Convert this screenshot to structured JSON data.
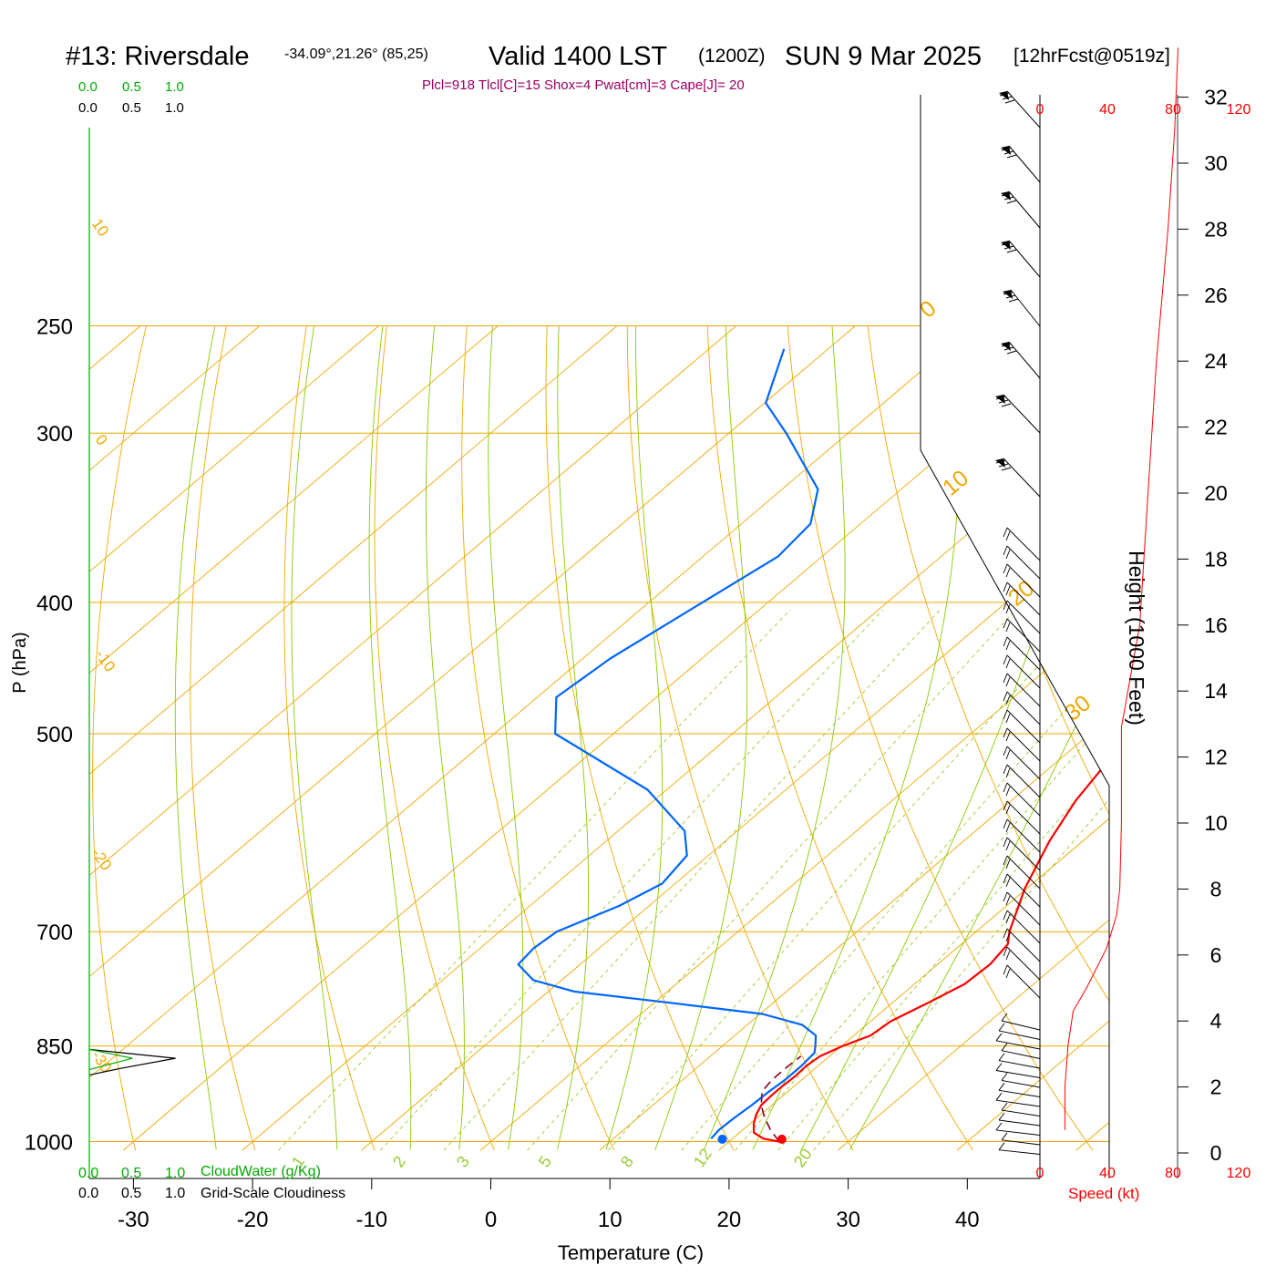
{
  "header": {
    "station": "#13: Riversdale",
    "coords": "-34.09°,21.26° (85,25)",
    "valid": "Valid 1400 LST",
    "utc": "(1200Z)",
    "date": "SUN 9 Mar 2025",
    "forecast": "[12hrFcst@0519z]"
  },
  "params_line": "Plcl=918 Tlcl[C]=15 Shox=4 Pwat[cm]=3 Cape[J]= 20",
  "colors": {
    "temperature": "#ff0000",
    "dewpoint": "#0066ff",
    "isotherm": "#f0a800",
    "moist_adiabat": "#88cc00",
    "mixing_ratio": "#99cc33",
    "cloudwater": "#00aa00",
    "params": "#990066",
    "speed": "#ff0000"
  },
  "cloud_scale": {
    "green_ticks": [
      "0.0",
      "0.5",
      "1.0"
    ],
    "black_ticks": [
      "0.0",
      "0.5",
      "1.0"
    ],
    "cloudwater_label": "CloudWater (g/Kg)",
    "cloudiness_label": "Grid-Scale Cloudiness"
  },
  "speed_scale": {
    "ticks": [
      "0",
      "40",
      "80",
      "120"
    ],
    "label": "Speed (kt)"
  },
  "chart_data": {
    "type": "line",
    "title": "#13: Riversdale",
    "xlabel": "Temperature (C)",
    "ylabel": "P (hPa)",
    "y2label": "Height (1000 Feet)",
    "x_ticks": [
      "-30",
      "-20",
      "-10",
      "0",
      "10",
      "20",
      "30",
      "40"
    ],
    "pressure_ticks": [
      "250",
      "300",
      "400",
      "500",
      "700",
      "850",
      "1000"
    ],
    "height_ticks": [
      "0",
      "2",
      "4",
      "6",
      "8",
      "10",
      "12",
      "14",
      "16",
      "18",
      "20",
      "22",
      "24",
      "26",
      "28",
      "30",
      "32"
    ],
    "xlim": [
      -33.6,
      36.2
    ],
    "plim": [
      1015,
      250
    ],
    "temperature_profile": [
      {
        "p": 1000,
        "t": 24.2
      },
      {
        "p": 995,
        "t": 22.6
      },
      {
        "p": 985,
        "t": 21.2
      },
      {
        "p": 970,
        "t": 20.3
      },
      {
        "p": 955,
        "t": 19.6
      },
      {
        "p": 940,
        "t": 19.1
      },
      {
        "p": 925,
        "t": 19.0
      },
      {
        "p": 910,
        "t": 19.0
      },
      {
        "p": 895,
        "t": 19.1
      },
      {
        "p": 880,
        "t": 19.0
      },
      {
        "p": 865,
        "t": 19.2
      },
      {
        "p": 850,
        "t": 20.1
      },
      {
        "p": 835,
        "t": 21.4
      },
      {
        "p": 815,
        "t": 21.7
      },
      {
        "p": 790,
        "t": 23.0
      },
      {
        "p": 765,
        "t": 24.2
      },
      {
        "p": 740,
        "t": 24.4
      },
      {
        "p": 715,
        "t": 23.9
      },
      {
        "p": 700,
        "t": 22.8
      },
      {
        "p": 650,
        "t": 19.8
      },
      {
        "p": 600,
        "t": 17.2
      },
      {
        "p": 560,
        "t": 15.4
      },
      {
        "p": 500,
        "t": 13.4
      },
      {
        "p": 470,
        "t": 12.4
      },
      {
        "p": 450,
        "t": 10.9
      },
      {
        "p": 400,
        "t": 6.7
      },
      {
        "p": 350,
        "t": 2.5
      },
      {
        "p": 320,
        "t": -1.3
      },
      {
        "p": 300,
        "t": -4.6
      },
      {
        "p": 275,
        "t": -8.2
      },
      {
        "p": 260,
        "t": -10.6
      }
    ],
    "dewpoint_profile": [
      {
        "p": 995,
        "t": 18.2
      },
      {
        "p": 980,
        "t": 18.0
      },
      {
        "p": 960,
        "t": 18.1
      },
      {
        "p": 940,
        "t": 18.3
      },
      {
        "p": 920,
        "t": 18.4
      },
      {
        "p": 900,
        "t": 18.6
      },
      {
        "p": 880,
        "t": 18.6
      },
      {
        "p": 860,
        "t": 18.4
      },
      {
        "p": 850,
        "t": 17.8
      },
      {
        "p": 835,
        "t": 16.8
      },
      {
        "p": 820,
        "t": 14.6
      },
      {
        "p": 805,
        "t": 10.2
      },
      {
        "p": 790,
        "t": 1.4
      },
      {
        "p": 775,
        "t": -7.8
      },
      {
        "p": 760,
        "t": -12.4
      },
      {
        "p": 740,
        "t": -15.2
      },
      {
        "p": 720,
        "t": -15.5
      },
      {
        "p": 700,
        "t": -15.2
      },
      {
        "p": 670,
        "t": -12.5
      },
      {
        "p": 645,
        "t": -11.1
      },
      {
        "p": 615,
        "t": -11.8
      },
      {
        "p": 590,
        "t": -14.4
      },
      {
        "p": 550,
        "t": -21.6
      },
      {
        "p": 500,
        "t": -34.9
      },
      {
        "p": 470,
        "t": -38.4
      },
      {
        "p": 440,
        "t": -37.7
      },
      {
        "p": 400,
        "t": -35.5
      },
      {
        "p": 370,
        "t": -33.7
      },
      {
        "p": 350,
        "t": -34.2
      },
      {
        "p": 330,
        "t": -37.0
      },
      {
        "p": 300,
        "t": -45.2
      },
      {
        "p": 285,
        "t": -49.9
      },
      {
        "p": 260,
        "t": -53.7
      }
    ],
    "parcel_profile": [
      {
        "p": 1000,
        "t": 24.2
      },
      {
        "p": 980,
        "t": 22.3
      },
      {
        "p": 960,
        "t": 20.6
      },
      {
        "p": 940,
        "t": 19.1
      },
      {
        "p": 918,
        "t": 17.8
      },
      {
        "p": 900,
        "t": 17.5
      },
      {
        "p": 880,
        "t": 17.5
      },
      {
        "p": 865,
        "t": 17.6
      }
    ],
    "surface_temperature": 24.2,
    "surface_dewpoint": 19.2,
    "isotherm_label_values": [
      "10",
      "0",
      "-10",
      "-20",
      "-30",
      "0",
      "10",
      "20",
      "30"
    ],
    "mixing_ratio_labels": [
      "1",
      "2",
      "3",
      "5",
      "8",
      "12",
      "20"
    ],
    "wind_speed_profile": [
      {
        "h": 0.7,
        "s": 15
      },
      {
        "h": 2.0,
        "s": 15
      },
      {
        "h": 3.3,
        "s": 17
      },
      {
        "h": 4.3,
        "s": 20
      },
      {
        "h": 5.0,
        "s": 28
      },
      {
        "h": 6.2,
        "s": 40
      },
      {
        "h": 7.2,
        "s": 46
      },
      {
        "h": 8.0,
        "s": 48
      },
      {
        "h": 10.0,
        "s": 49
      },
      {
        "h": 12.9,
        "s": 49
      },
      {
        "h": 16.0,
        "s": 60
      },
      {
        "h": 20.0,
        "s": 65
      },
      {
        "h": 24.0,
        "s": 70
      },
      {
        "h": 28.0,
        "s": 77
      },
      {
        "h": 31.0,
        "s": 81
      },
      {
        "h": 33.5,
        "s": 83
      }
    ],
    "cloud_water_trace": [
      {
        "p": 855,
        "v": 0.0
      },
      {
        "p": 868,
        "v": 0.55
      },
      {
        "p": 885,
        "v": 0.0
      }
    ],
    "cloudiness_trace": [
      {
        "p": 855,
        "v": 0.0
      },
      {
        "p": 868,
        "v": 1.1
      },
      {
        "p": 883,
        "v": 0.4
      },
      {
        "p": 893,
        "v": 0.0
      }
    ]
  }
}
